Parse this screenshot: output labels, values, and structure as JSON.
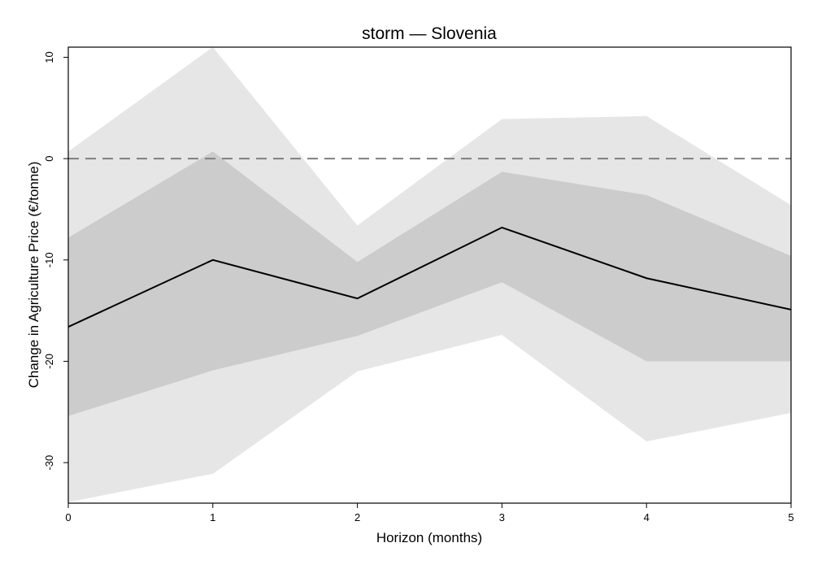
{
  "chart_data": {
    "type": "line",
    "title": "storm — Slovenia",
    "xlabel": "Horizon (months)",
    "ylabel": "Change in Agriculture Price (€/tonne)",
    "x": [
      0,
      1,
      2,
      3,
      4,
      5
    ],
    "xlim": [
      0,
      5
    ],
    "ylim": [
      -34,
      11
    ],
    "xticks": [
      "0",
      "1",
      "2",
      "3",
      "4",
      "5"
    ],
    "yticks": [
      10,
      0,
      -10,
      -20,
      -30
    ],
    "ytick_labels": [
      "10",
      "0",
      "-10",
      "-20",
      "-30"
    ],
    "reference_line": 0,
    "grid": false,
    "series": [
      {
        "role": "estimate",
        "values": [
          -16.6,
          -10.0,
          -13.8,
          -6.8,
          -11.8,
          -14.9
        ]
      }
    ],
    "bands": [
      {
        "role": "outer",
        "lower": [
          -33.9,
          -31.1,
          -21.0,
          -17.4,
          -27.9,
          -25.1
        ],
        "upper": [
          0.7,
          11.0,
          -6.6,
          3.9,
          4.2,
          -4.6
        ]
      },
      {
        "role": "inner",
        "lower": [
          -25.4,
          -20.9,
          -17.5,
          -12.2,
          -20.0,
          -20.0
        ],
        "upper": [
          -7.8,
          0.7,
          -10.2,
          -1.3,
          -3.6,
          -9.6
        ]
      }
    ],
    "colors": {
      "outer_band": "#e6e6e6",
      "inner_band": "#cccccc",
      "line": "#000000",
      "reference": "#808080",
      "frame": "#000000"
    }
  }
}
